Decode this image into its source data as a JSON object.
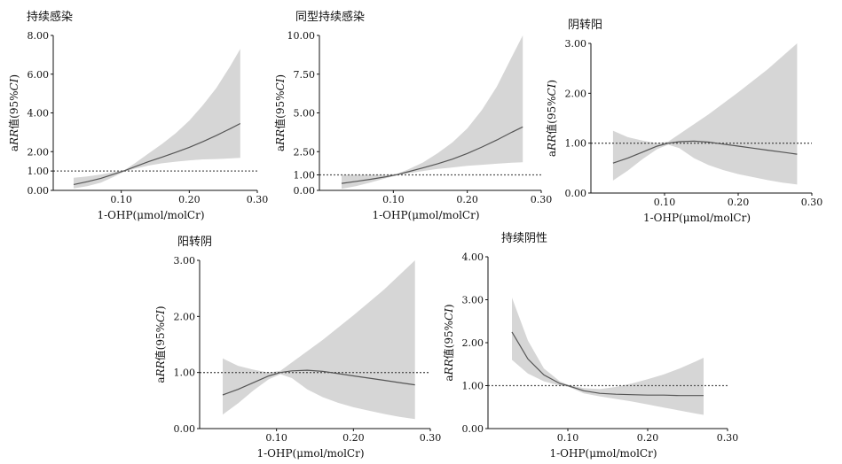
{
  "chart_data": [
    {
      "type": "line",
      "title": "持续感染",
      "xlabel": "1-OHP(μmol/molCr)",
      "ylabel_parts": [
        "a",
        "RR",
        "值(95%",
        "CI",
        ")"
      ],
      "xlim": [
        0.0,
        0.3
      ],
      "ylim": [
        0.0,
        8.0
      ],
      "xticks": [
        0.1,
        0.2,
        0.3
      ],
      "xtick_labels": [
        "0.10",
        "0.20",
        "0.30"
      ],
      "yticks": [
        0,
        1,
        2,
        4,
        6,
        8
      ],
      "ytick_labels": [
        "0.00",
        "1.00",
        "2.00",
        "4.00",
        "6.00",
        "8.00"
      ],
      "reference_y": 1.0,
      "x": [
        0.03,
        0.05,
        0.07,
        0.09,
        0.105,
        0.12,
        0.14,
        0.16,
        0.18,
        0.2,
        0.22,
        0.24,
        0.26,
        0.275
      ],
      "estimate": [
        0.3,
        0.45,
        0.62,
        0.85,
        1.02,
        1.22,
        1.48,
        1.72,
        1.96,
        2.22,
        2.52,
        2.84,
        3.18,
        3.45
      ],
      "ci_lower": [
        0.1,
        0.22,
        0.4,
        0.72,
        0.98,
        1.12,
        1.28,
        1.4,
        1.48,
        1.55,
        1.6,
        1.62,
        1.65,
        1.68
      ],
      "ci_upper": [
        0.65,
        0.72,
        0.82,
        0.95,
        1.05,
        1.4,
        1.9,
        2.4,
        2.95,
        3.6,
        4.4,
        5.3,
        6.4,
        7.3
      ]
    },
    {
      "type": "line",
      "title": "同型持续感染",
      "xlabel": "1-OHP(μmol/molCr)",
      "ylabel_parts": [
        "a",
        "RR",
        "值(95%",
        "CI",
        ")"
      ],
      "xlim": [
        0.0,
        0.3
      ],
      "ylim": [
        0.0,
        10.0
      ],
      "xticks": [
        0.1,
        0.2,
        0.3
      ],
      "xtick_labels": [
        "0.10",
        "0.20",
        "0.30"
      ],
      "yticks": [
        0,
        1,
        2.5,
        5,
        7.5,
        10
      ],
      "ytick_labels": [
        "0.00",
        "1.00",
        "2.50",
        "5.00",
        "7.50",
        "10.00"
      ],
      "reference_y": 1.0,
      "x": [
        0.03,
        0.05,
        0.07,
        0.09,
        0.105,
        0.12,
        0.14,
        0.16,
        0.18,
        0.2,
        0.22,
        0.24,
        0.26,
        0.275
      ],
      "estimate": [
        0.45,
        0.58,
        0.72,
        0.88,
        1.02,
        1.2,
        1.45,
        1.72,
        2.02,
        2.38,
        2.8,
        3.25,
        3.75,
        4.1
      ],
      "ci_lower": [
        0.1,
        0.28,
        0.52,
        0.78,
        0.97,
        1.1,
        1.25,
        1.38,
        1.48,
        1.58,
        1.65,
        1.72,
        1.78,
        1.82
      ],
      "ci_upper": [
        1.0,
        1.0,
        1.0,
        1.0,
        1.06,
        1.35,
        1.8,
        2.4,
        3.1,
        4.0,
        5.2,
        6.7,
        8.6,
        10.0
      ]
    },
    {
      "type": "line",
      "title": "阴转阳",
      "xlabel": "1-OHP(μmol/molCr)",
      "ylabel_parts": [
        "a",
        "RR",
        "值(95%",
        "CI",
        ")"
      ],
      "xlim": [
        0.0,
        0.3
      ],
      "ylim": [
        0.0,
        3.0
      ],
      "xticks": [
        0.1,
        0.2,
        0.3
      ],
      "xtick_labels": [
        "0.10",
        "0.20",
        "0.30"
      ],
      "yticks": [
        0,
        1,
        2,
        3
      ],
      "ytick_labels": [
        "0.00",
        "1.00",
        "2.00",
        "3.00"
      ],
      "reference_y": 1.0,
      "x": [
        0.03,
        0.05,
        0.07,
        0.09,
        0.105,
        0.12,
        0.14,
        0.16,
        0.18,
        0.2,
        0.22,
        0.24,
        0.26,
        0.28
      ],
      "estimate": [
        0.6,
        0.7,
        0.82,
        0.94,
        1.0,
        1.03,
        1.04,
        1.02,
        0.98,
        0.94,
        0.9,
        0.86,
        0.82,
        0.78
      ],
      "ci_lower": [
        0.25,
        0.45,
        0.68,
        0.88,
        0.97,
        0.9,
        0.7,
        0.56,
        0.46,
        0.38,
        0.32,
        0.26,
        0.21,
        0.17
      ],
      "ci_upper": [
        1.25,
        1.12,
        1.05,
        1.0,
        1.03,
        1.18,
        1.38,
        1.58,
        1.8,
        2.02,
        2.25,
        2.48,
        2.74,
        3.0
      ]
    },
    {
      "type": "line",
      "title": "阳转阴",
      "xlabel": "1-OHP(μmol/molCr)",
      "ylabel_parts": [
        "a",
        "RR",
        "值(95%",
        "CI",
        ")"
      ],
      "xlim": [
        0.0,
        0.3
      ],
      "ylim": [
        0.0,
        3.0
      ],
      "xticks": [
        0.1,
        0.2,
        0.3
      ],
      "xtick_labels": [
        "0.10",
        "0.20",
        "0.30"
      ],
      "yticks": [
        0,
        1,
        2,
        3
      ],
      "ytick_labels": [
        "0.00",
        "1.00",
        "2.00",
        "3.00"
      ],
      "reference_y": 1.0,
      "x": [
        0.03,
        0.05,
        0.07,
        0.09,
        0.105,
        0.12,
        0.14,
        0.16,
        0.18,
        0.2,
        0.22,
        0.24,
        0.26,
        0.28
      ],
      "estimate": [
        0.6,
        0.7,
        0.82,
        0.94,
        1.0,
        1.03,
        1.04,
        1.02,
        0.98,
        0.94,
        0.9,
        0.86,
        0.82,
        0.78
      ],
      "ci_lower": [
        0.25,
        0.45,
        0.68,
        0.88,
        0.97,
        0.9,
        0.7,
        0.56,
        0.46,
        0.38,
        0.32,
        0.26,
        0.21,
        0.17
      ],
      "ci_upper": [
        1.25,
        1.12,
        1.05,
        1.0,
        1.03,
        1.18,
        1.38,
        1.58,
        1.8,
        2.02,
        2.25,
        2.48,
        2.74,
        3.0
      ]
    },
    {
      "type": "line",
      "title": "持续阴性",
      "xlabel": "1-OHP(μmol/molCr)",
      "ylabel_parts": [
        "a",
        "RR",
        "值(95%",
        "CI",
        ")"
      ],
      "xlim": [
        0.0,
        0.3
      ],
      "ylim": [
        0.0,
        4.0
      ],
      "xticks": [
        0.1,
        0.2,
        0.3
      ],
      "xtick_labels": [
        "0.10",
        "0.20",
        "0.30"
      ],
      "yticks": [
        0,
        1,
        2,
        3,
        4
      ],
      "ytick_labels": [
        "0.00",
        "1.00",
        "2.00",
        "3.00",
        "4.00"
      ],
      "reference_y": 1.0,
      "x": [
        0.03,
        0.05,
        0.07,
        0.09,
        0.1,
        0.12,
        0.14,
        0.16,
        0.18,
        0.2,
        0.22,
        0.24,
        0.26,
        0.27
      ],
      "estimate": [
        2.25,
        1.62,
        1.25,
        1.05,
        1.0,
        0.88,
        0.82,
        0.8,
        0.79,
        0.78,
        0.78,
        0.77,
        0.77,
        0.77
      ],
      "ci_lower": [
        1.6,
        1.28,
        1.1,
        1.0,
        0.98,
        0.82,
        0.75,
        0.69,
        0.63,
        0.56,
        0.49,
        0.42,
        0.35,
        0.32
      ],
      "ci_upper": [
        3.05,
        2.05,
        1.4,
        1.1,
        1.02,
        0.94,
        0.92,
        0.97,
        1.05,
        1.15,
        1.26,
        1.4,
        1.56,
        1.65
      ]
    }
  ]
}
